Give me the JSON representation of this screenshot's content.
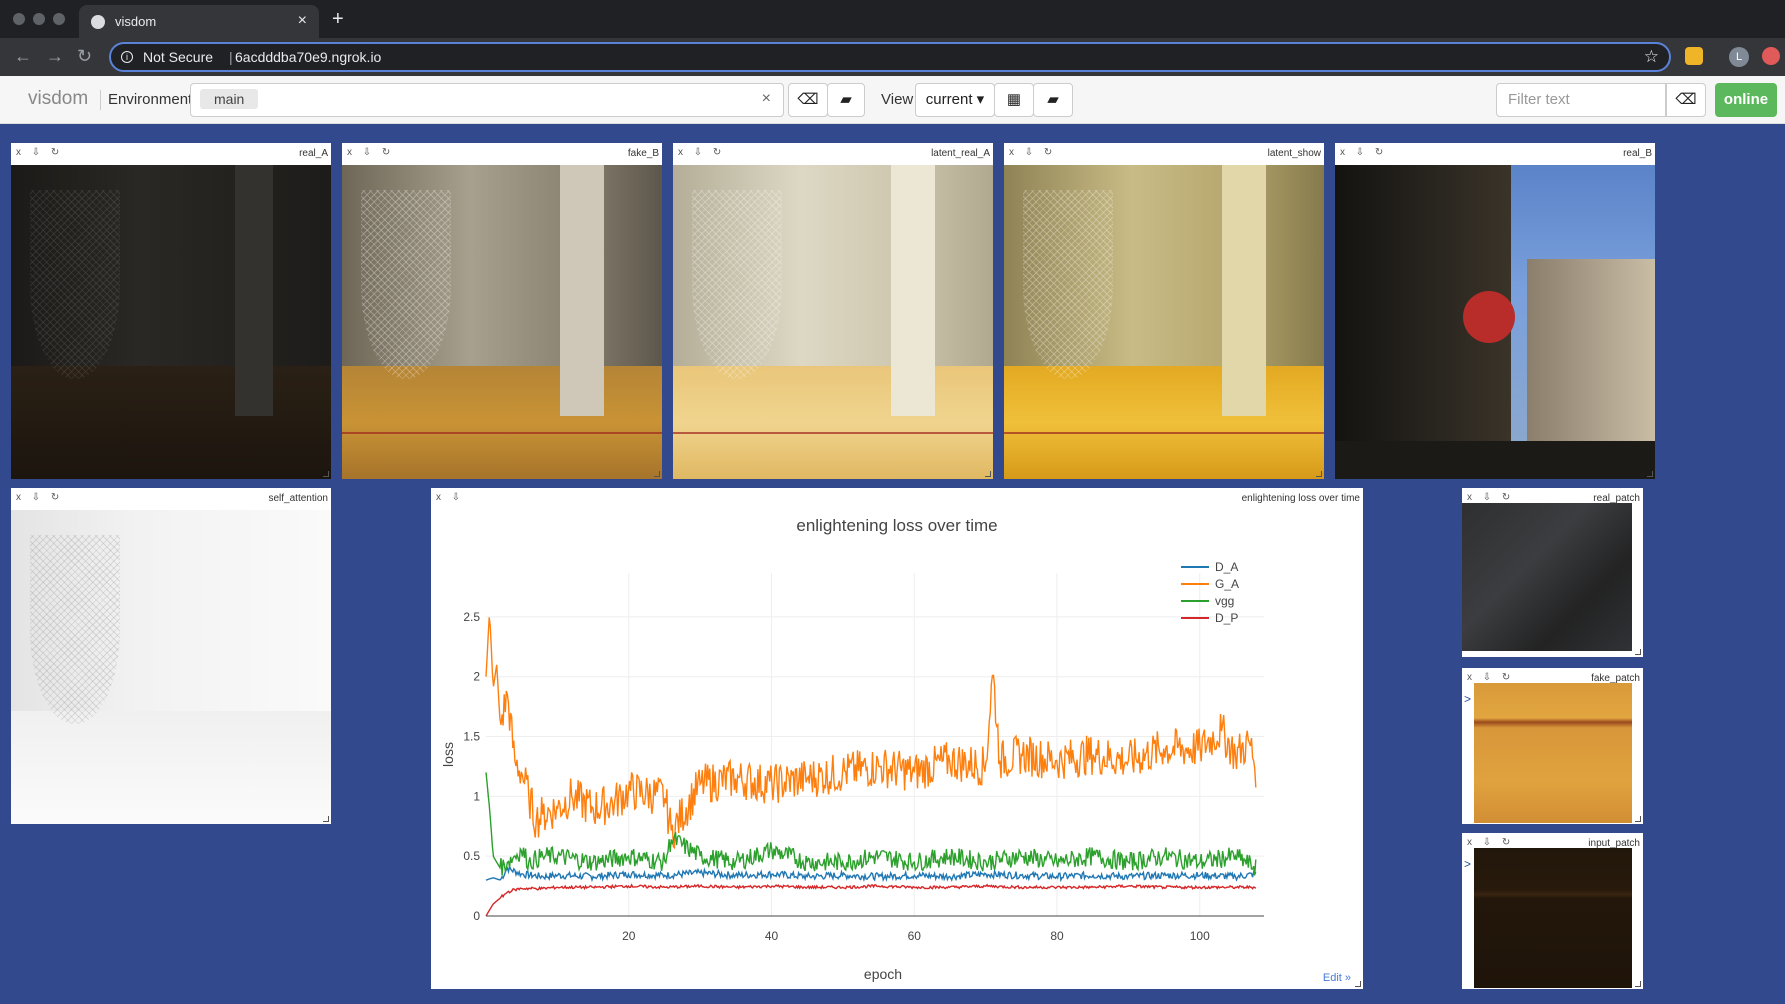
{
  "browser": {
    "tab_title": "visdom",
    "security_label": "Not Secure",
    "url": "6acdddba70e9.ngrok.io",
    "profile_initial": "L"
  },
  "toolbar": {
    "brand": "visdom",
    "environment_label": "Environment",
    "environment_value": "main",
    "env_clear": "×",
    "view_label": "View",
    "view_value": "current ▾",
    "filter_placeholder": "Filter text",
    "status": "online"
  },
  "panes": {
    "real_A": "real_A",
    "fake_B": "fake_B",
    "latent_real_A": "latent_real_A",
    "latent_show": "latent_show",
    "real_B": "real_B",
    "self_attention": "self_attention",
    "chart_pane": "enlightening loss over time",
    "real_patch": "real_patch",
    "fake_patch": "fake_patch",
    "input_patch": "input_patch",
    "pane_icons": "x ⇩ ↻",
    "chart_icons": "x ⇩",
    "edit_link": "Edit »"
  },
  "chart_data": {
    "type": "line",
    "title": "enlightening loss over time",
    "xlabel": "epoch",
    "ylabel": "loss",
    "xlim": [
      0,
      109
    ],
    "ylim": [
      0,
      2.7
    ],
    "xticks": [
      20,
      40,
      60,
      80,
      100
    ],
    "yticks": [
      0,
      0.5,
      1,
      1.5,
      2,
      2.5
    ],
    "ytick_labels": [
      "0",
      "0.5",
      "1",
      "1.5",
      "2",
      "2.5"
    ],
    "grid": true,
    "legend_position": "top-right",
    "series": [
      {
        "name": "D_A",
        "color": "#1f77b4",
        "x": [
          0,
          1,
          2,
          3,
          5,
          8,
          10,
          15,
          20,
          25,
          30,
          35,
          40,
          45,
          50,
          55,
          60,
          65,
          70,
          75,
          80,
          85,
          90,
          95,
          100,
          105,
          108
        ],
        "y": [
          0.3,
          0.32,
          0.3,
          0.4,
          0.35,
          0.33,
          0.34,
          0.33,
          0.35,
          0.34,
          0.36,
          0.34,
          0.35,
          0.33,
          0.34,
          0.33,
          0.34,
          0.33,
          0.35,
          0.34,
          0.33,
          0.34,
          0.33,
          0.34,
          0.34,
          0.33,
          0.35
        ]
      },
      {
        "name": "G_A",
        "color": "#ff7f0e",
        "x": [
          0,
          0.5,
          1,
          1.5,
          2,
          3,
          4,
          5,
          6,
          7,
          8,
          10,
          12,
          15,
          18,
          20,
          25,
          26,
          30,
          35,
          40,
          45,
          50,
          55,
          60,
          65,
          70,
          71,
          72,
          75,
          80,
          85,
          90,
          95,
          100,
          103,
          105,
          107,
          108
        ],
        "y": [
          2.0,
          2.55,
          1.9,
          2.1,
          1.6,
          1.85,
          1.3,
          1.2,
          1.0,
          0.8,
          0.85,
          0.9,
          1.0,
          0.9,
          0.95,
          1.05,
          1.0,
          0.7,
          1.1,
          1.15,
          1.1,
          1.15,
          1.2,
          1.25,
          1.2,
          1.3,
          1.25,
          2.05,
          1.3,
          1.35,
          1.3,
          1.35,
          1.3,
          1.4,
          1.4,
          1.55,
          1.35,
          1.45,
          1.2
        ]
      },
      {
        "name": "vgg",
        "color": "#2ca02c",
        "x": [
          0,
          0.5,
          1,
          2,
          3,
          4,
          5,
          6,
          8,
          10,
          15,
          20,
          25,
          26,
          30,
          35,
          40,
          45,
          50,
          55,
          60,
          65,
          70,
          75,
          80,
          85,
          90,
          95,
          100,
          105,
          108
        ],
        "y": [
          1.2,
          0.9,
          0.5,
          0.4,
          0.45,
          0.5,
          0.55,
          0.45,
          0.5,
          0.5,
          0.45,
          0.5,
          0.45,
          0.65,
          0.5,
          0.45,
          0.55,
          0.45,
          0.45,
          0.5,
          0.45,
          0.5,
          0.45,
          0.5,
          0.45,
          0.5,
          0.45,
          0.5,
          0.45,
          0.5,
          0.4
        ]
      },
      {
        "name": "D_P",
        "color": "#d62728",
        "x": [
          0,
          0.5,
          1,
          2,
          3,
          4,
          5,
          8,
          10,
          15,
          20,
          25,
          30,
          35,
          40,
          45,
          50,
          55,
          60,
          65,
          70,
          75,
          80,
          85,
          90,
          95,
          100,
          105,
          108
        ],
        "y": [
          0.0,
          0.05,
          0.1,
          0.15,
          0.2,
          0.22,
          0.23,
          0.23,
          0.24,
          0.24,
          0.25,
          0.24,
          0.25,
          0.24,
          0.25,
          0.24,
          0.24,
          0.25,
          0.24,
          0.24,
          0.25,
          0.24,
          0.24,
          0.24,
          0.25,
          0.24,
          0.24,
          0.24,
          0.24
        ]
      }
    ]
  }
}
